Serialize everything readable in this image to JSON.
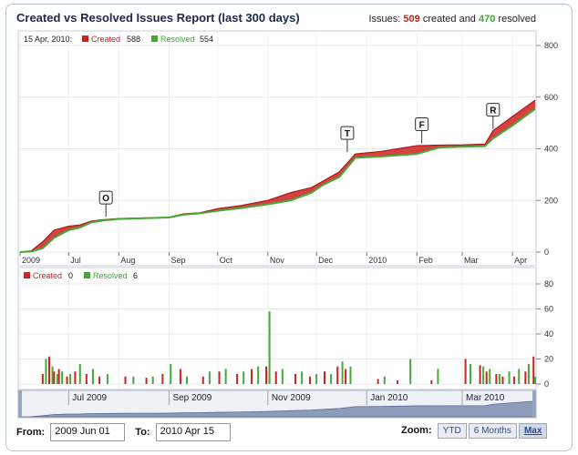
{
  "header": {
    "title": "Created vs Resolved Issues Report (last 300 days)",
    "summary_prefix": "Issues:",
    "created_count": "509",
    "created_word": "created and",
    "resolved_count": "470",
    "resolved_word": "resolved"
  },
  "legend": {
    "date": "15 Apr, 2010:",
    "created_label": "Created",
    "created_value": "588",
    "resolved_label": "Resolved",
    "resolved_value": "554"
  },
  "lower_legend": {
    "created_label": "Created",
    "created_value": "0",
    "resolved_label": "Resolved",
    "resolved_value": "6"
  },
  "colors": {
    "created": "#cc2222",
    "resolved": "#44aa33"
  },
  "chart_data": [
    {
      "type": "area",
      "title": "Created vs Resolved Issues Report (last 300 days)",
      "x_tick_labels": [
        "2009",
        "Jul",
        "Aug",
        "Sep",
        "Oct",
        "Nov",
        "Dec",
        "2010",
        "Feb",
        "Mar",
        "Apr"
      ],
      "x_tick_dates": [
        "2009-06-01",
        "2009-07-01",
        "2009-08-01",
        "2009-09-01",
        "2009-10-01",
        "2009-11-01",
        "2009-12-01",
        "2010-01-01",
        "2010-02-01",
        "2010-03-01",
        "2010-04-01"
      ],
      "y_ticks": [
        0,
        200,
        400,
        600,
        800
      ],
      "ylim": [
        0,
        800
      ],
      "series": [
        {
          "name": "Created",
          "x": [
            "2009-06-01",
            "2009-06-08",
            "2009-06-15",
            "2009-06-22",
            "2009-07-01",
            "2009-07-08",
            "2009-07-15",
            "2009-07-22",
            "2009-08-01",
            "2009-08-15",
            "2009-09-01",
            "2009-09-10",
            "2009-09-20",
            "2009-10-01",
            "2009-10-15",
            "2009-11-01",
            "2009-11-15",
            "2009-11-28",
            "2009-12-05",
            "2009-12-15",
            "2009-12-25",
            "2010-01-10",
            "2010-02-01",
            "2010-02-15",
            "2010-03-01",
            "2010-03-15",
            "2010-03-20",
            "2010-04-01",
            "2010-04-15"
          ],
          "y": [
            0,
            5,
            40,
            85,
            100,
            105,
            120,
            125,
            130,
            132,
            135,
            148,
            152,
            168,
            180,
            200,
            230,
            250,
            275,
            310,
            380,
            390,
            412,
            414,
            415,
            418,
            470,
            525,
            588
          ]
        },
        {
          "name": "Resolved",
          "x": [
            "2009-06-01",
            "2009-06-08",
            "2009-06-15",
            "2009-06-22",
            "2009-07-01",
            "2009-07-08",
            "2009-07-15",
            "2009-07-22",
            "2009-08-01",
            "2009-08-15",
            "2009-09-01",
            "2009-09-10",
            "2009-09-20",
            "2009-10-01",
            "2009-10-15",
            "2009-11-01",
            "2009-11-15",
            "2009-11-28",
            "2009-12-05",
            "2009-12-15",
            "2009-12-25",
            "2010-01-10",
            "2010-02-01",
            "2010-02-15",
            "2010-03-01",
            "2010-03-15",
            "2010-03-20",
            "2010-04-01",
            "2010-04-15"
          ],
          "y": [
            0,
            2,
            15,
            55,
            85,
            95,
            115,
            122,
            128,
            131,
            134,
            145,
            150,
            160,
            170,
            185,
            200,
            230,
            260,
            290,
            365,
            370,
            380,
            405,
            408,
            410,
            440,
            490,
            554
          ]
        }
      ],
      "annotations": [
        {
          "label": "O",
          "date": "2009-07-24"
        },
        {
          "label": "T",
          "date": "2009-12-20"
        },
        {
          "label": "F",
          "date": "2010-02-04"
        },
        {
          "label": "R",
          "date": "2010-03-20"
        }
      ]
    },
    {
      "type": "bar",
      "y_ticks": [
        0,
        20,
        40,
        60,
        80
      ],
      "ylim": [
        0,
        80
      ],
      "series": [
        {
          "name": "Created",
          "x": [
            "2009-06-15",
            "2009-06-19",
            "2009-06-22",
            "2009-06-25",
            "2009-06-30",
            "2009-07-05",
            "2009-07-12",
            "2009-07-20",
            "2009-08-05",
            "2009-08-18",
            "2009-08-28",
            "2009-09-08",
            "2009-09-22",
            "2009-10-02",
            "2009-10-13",
            "2009-10-22",
            "2009-10-31",
            "2009-11-06",
            "2009-11-18",
            "2009-11-27",
            "2009-12-06",
            "2009-12-14",
            "2009-12-19",
            "2010-01-08",
            "2010-01-20",
            "2010-02-10",
            "2010-03-03",
            "2010-03-12",
            "2010-03-16",
            "2010-03-22",
            "2010-03-26",
            "2010-04-02",
            "2010-04-09",
            "2010-04-14"
          ],
          "y": [
            8,
            22,
            10,
            12,
            6,
            10,
            8,
            6,
            6,
            5,
            8,
            12,
            6,
            10,
            8,
            12,
            14,
            10,
            8,
            6,
            10,
            14,
            12,
            4,
            3,
            3,
            20,
            15,
            10,
            8,
            6,
            6,
            10,
            22
          ]
        },
        {
          "name": "Resolved",
          "x": [
            "2009-06-17",
            "2009-06-21",
            "2009-06-24",
            "2009-06-27",
            "2009-07-02",
            "2009-07-08",
            "2009-07-16",
            "2009-07-25",
            "2009-08-10",
            "2009-08-22",
            "2009-09-02",
            "2009-09-12",
            "2009-09-26",
            "2009-10-06",
            "2009-10-17",
            "2009-10-26",
            "2009-11-02",
            "2009-11-10",
            "2009-11-22",
            "2009-12-01",
            "2009-12-10",
            "2009-12-17",
            "2009-12-22",
            "2010-01-12",
            "2010-01-28",
            "2010-02-14",
            "2010-03-06",
            "2010-03-14",
            "2010-03-18",
            "2010-03-24",
            "2010-03-30",
            "2010-04-05",
            "2010-04-11",
            "2010-04-15"
          ],
          "y": [
            20,
            14,
            8,
            10,
            8,
            16,
            12,
            8,
            6,
            6,
            16,
            6,
            10,
            12,
            10,
            14,
            58,
            12,
            10,
            8,
            8,
            18,
            14,
            6,
            20,
            12,
            16,
            14,
            12,
            8,
            10,
            12,
            16,
            6
          ]
        }
      ]
    }
  ],
  "navigator": {
    "labels": [
      "Jul 2009",
      "Sep 2009",
      "Nov 2009",
      "Jan 2010",
      "Mar 2010"
    ]
  },
  "range": {
    "from_label": "From:",
    "from_value": "2009 Jun 01",
    "to_label": "To:",
    "to_value": "2010 Apr 15"
  },
  "zoom": {
    "label": "Zoom:",
    "options": [
      "YTD",
      "6 Months",
      "Max"
    ],
    "selected": "Max"
  }
}
